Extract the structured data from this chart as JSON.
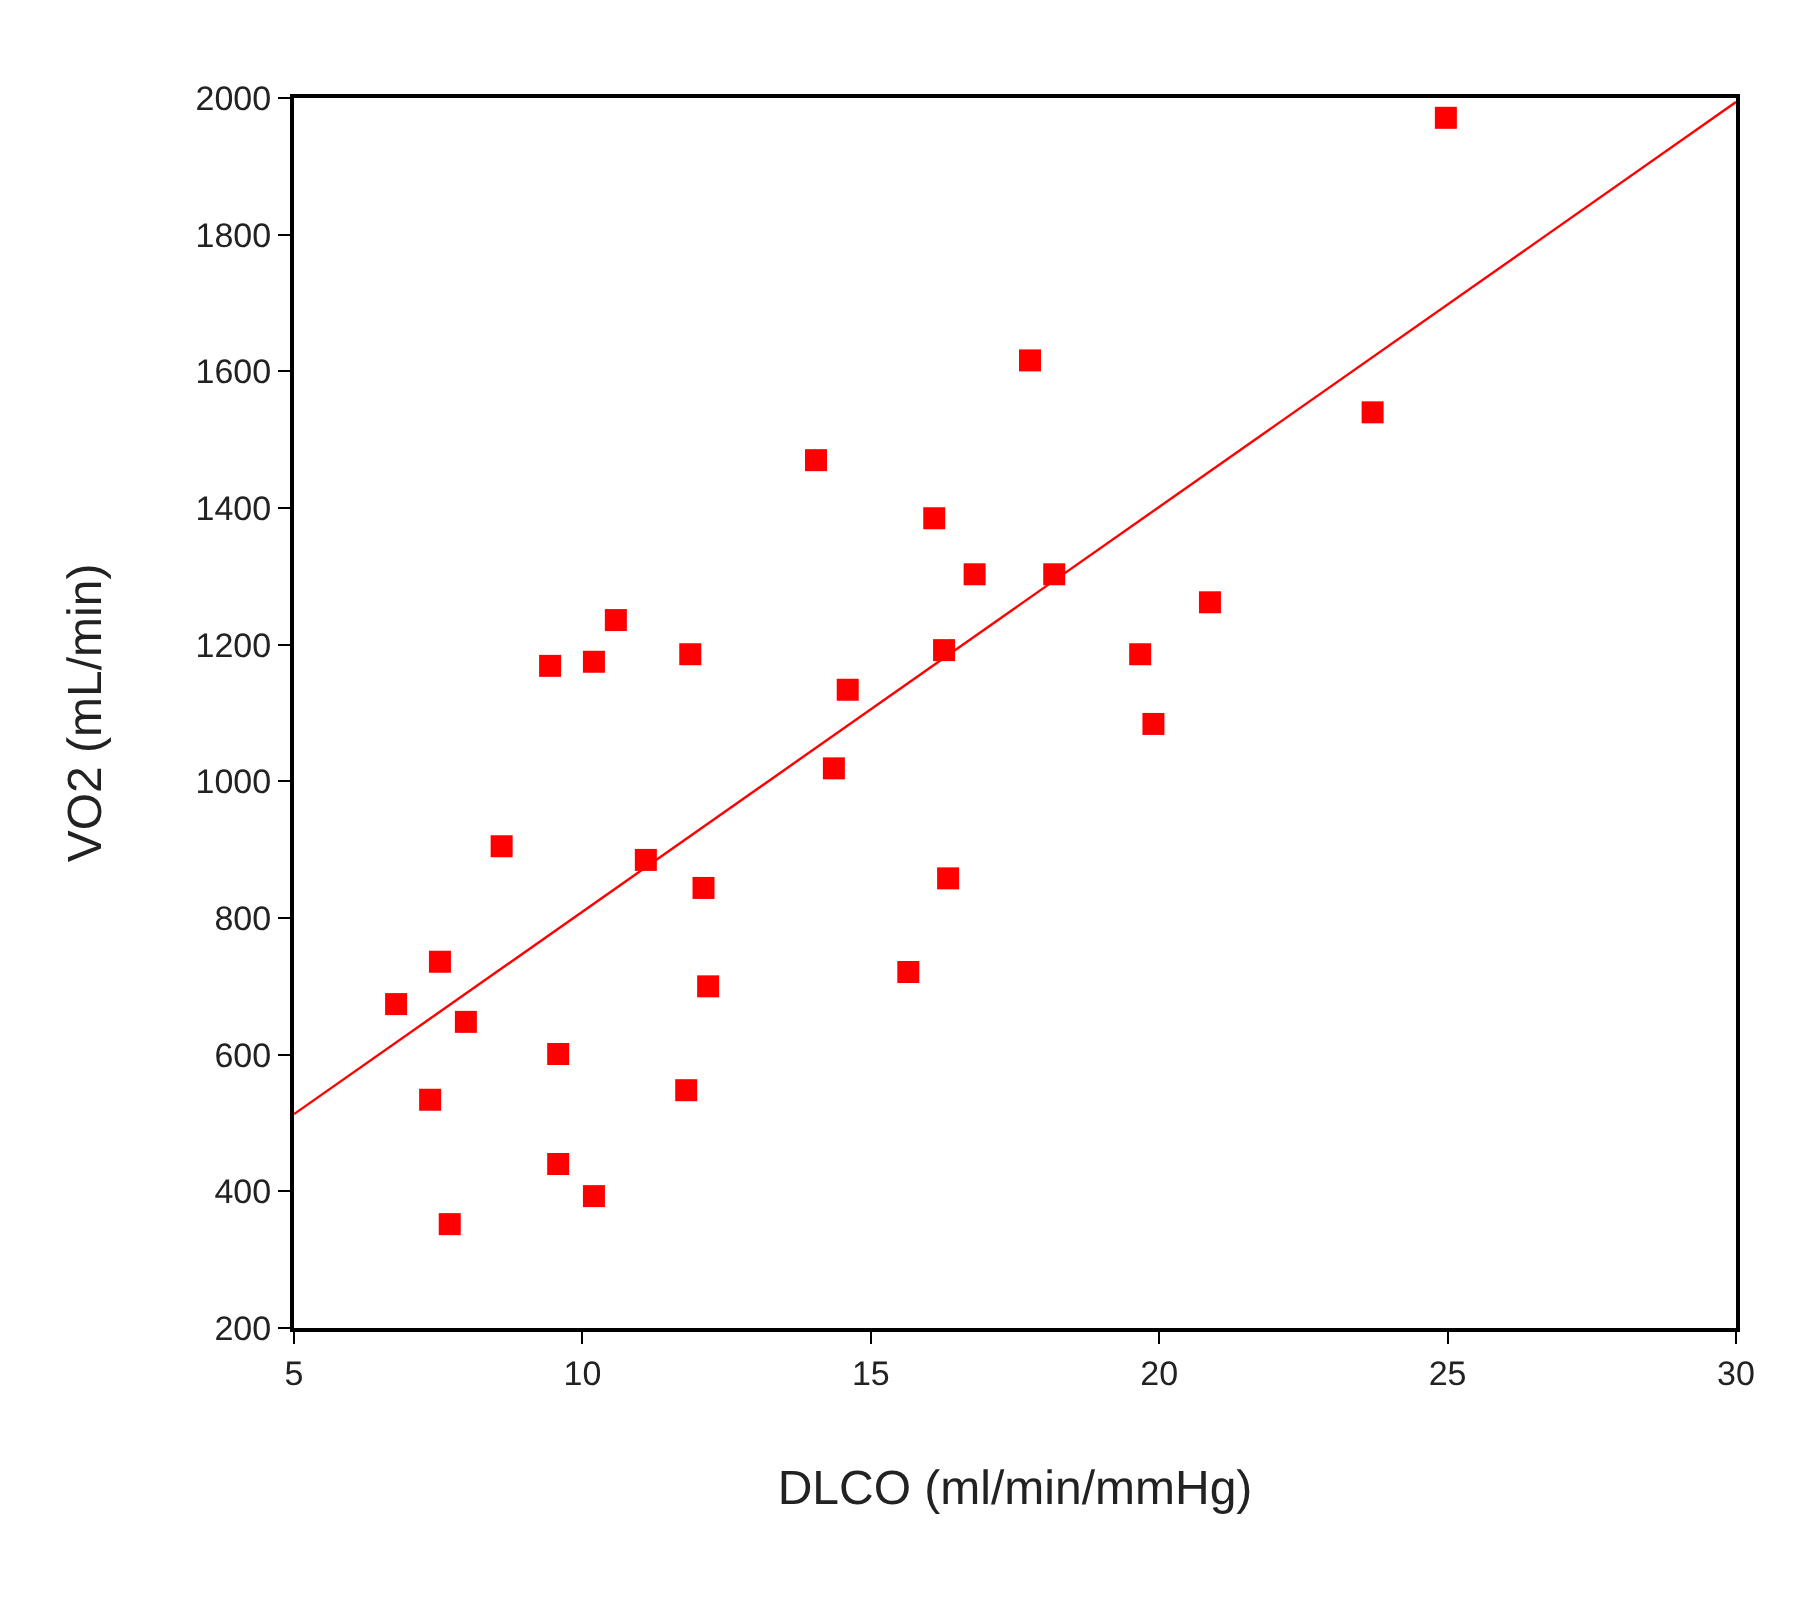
{
  "chart_data": {
    "type": "scatter",
    "xlabel": "DLCO (ml/min/mmHg)",
    "ylabel": "VO2 (mL/min)",
    "xlim": [
      5,
      30
    ],
    "xticks": [
      5,
      10,
      15,
      20,
      25,
      30
    ],
    "ylim": [
      200,
      2000
    ],
    "yticks": [
      200,
      400,
      600,
      800,
      1000,
      1200,
      1400,
      1600,
      1800,
      2000
    ],
    "grid": false,
    "marker": "square",
    "x": [
      6.77,
      7.53,
      7.98,
      7.36,
      7.7,
      8.6,
      9.44,
      9.58,
      9.58,
      10.2,
      10.2,
      10.58,
      11.1,
      11.87,
      11.8,
      12.1,
      12.18,
      14.05,
      14.36,
      14.6,
      15.65,
      16.1,
      16.27,
      16.34,
      16.8,
      17.76,
      18.18,
      19.67,
      19.9,
      20.88,
      23.7,
      24.97
    ],
    "series": [
      {
        "color": "#ff0000",
        "values": [
          674,
          736,
          648,
          534,
          352,
          905,
          1169,
          601,
          440,
          1175,
          393,
          1236,
          885,
          1186,
          548,
          844,
          700,
          1470,
          1019,
          1134,
          721,
          1385,
          1192,
          858,
          1303,
          1616,
          1303,
          1186,
          1084,
          1262,
          1540,
          1971
        ]
      },
      {
        "type": "line",
        "color": "#ff0000",
        "x": [
          5,
          30
        ],
        "values": [
          513,
          1994
        ],
        "marker": "none",
        "line_style": "solid"
      }
    ]
  }
}
